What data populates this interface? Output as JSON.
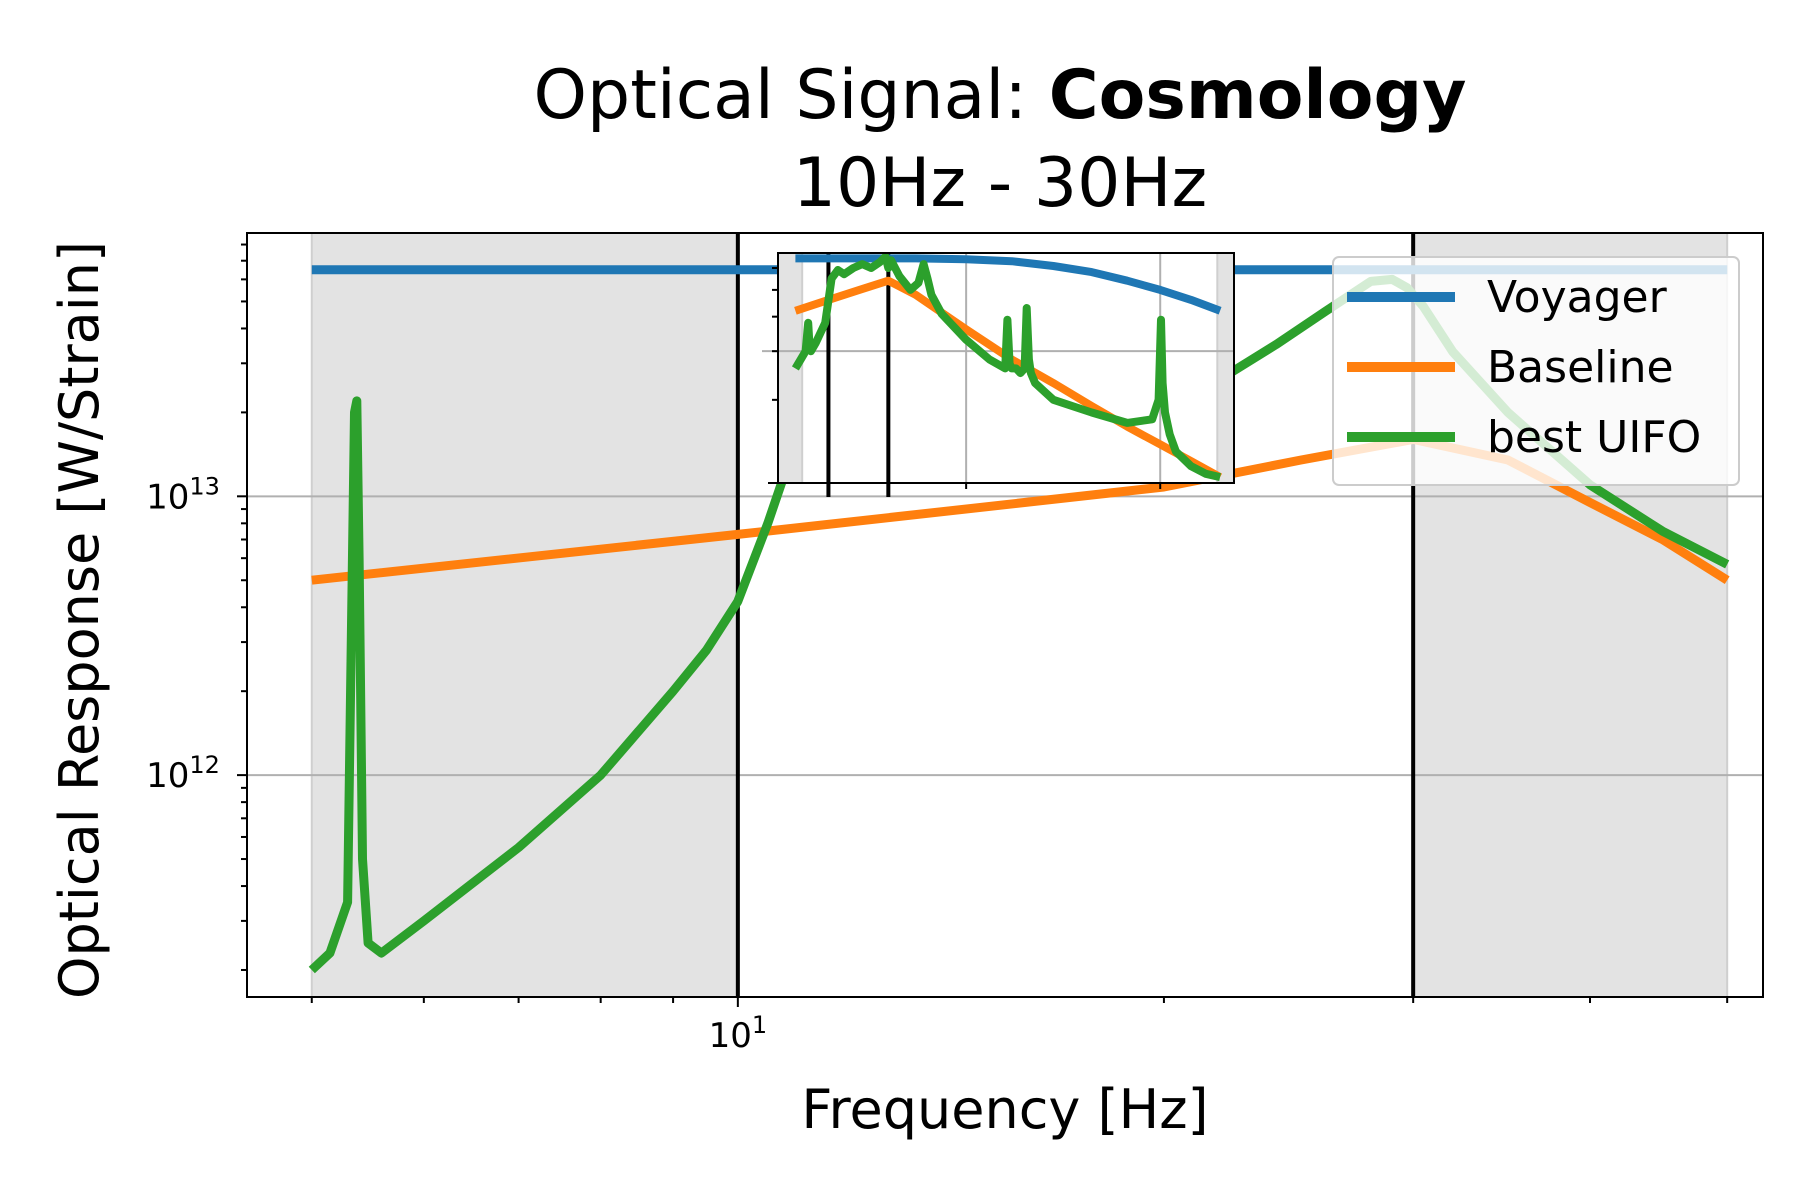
{
  "chart_data": {
    "type": "line",
    "title": {
      "prefix": "Optical Signal: ",
      "bold": "Cosmology"
    },
    "subtitle": "10Hz - 30Hz",
    "xlabel": "Frequency [Hz]",
    "ylabel": "Optical Response [W/Strain]",
    "x_scale": "log",
    "y_scale": "log",
    "xlim": [
      4.5,
      53
    ],
    "ylim": [
      160000000000.0,
      88000000000000.0
    ],
    "x_tick_labels": [
      {
        "value": 10,
        "base": "10",
        "exp": "1"
      }
    ],
    "y_tick_labels": [
      {
        "value": 1000000000000.0,
        "base": "10",
        "exp": "12"
      },
      {
        "value": 10000000000000.0,
        "base": "10",
        "exp": "13"
      }
    ],
    "grid": true,
    "legend_position": "top-right",
    "shaded_regions": [
      [
        5.0,
        10.0
      ],
      [
        30.0,
        50.0
      ]
    ],
    "band_edges": [
      10,
      30
    ],
    "colors": {
      "Voyager": "#1f77b4",
      "Baseline": "#ff7f0e",
      "best UIFO": "#2ca02c",
      "shade": "#e3e3e3"
    },
    "series": [
      {
        "name": "Voyager",
        "x": [
          5.0,
          50.0
        ],
        "y": [
          65000000000000.0,
          65000000000000.0
        ]
      },
      {
        "name": "Baseline",
        "x": [
          5.0,
          10.0,
          20.0,
          25.0,
          30.0,
          35.0,
          40.0,
          45.0,
          50.0
        ],
        "y": [
          5000000000000.0,
          7300000000000.0,
          10800000000000.0,
          13500000000000.0,
          16000000000000.0,
          13500000000000.0,
          9500000000000.0,
          7000000000000.0,
          5000000000000.0
        ]
      },
      {
        "name": "best UIFO",
        "x": [
          5.0,
          5.15,
          5.3,
          5.36,
          5.38,
          5.4,
          5.43,
          5.48,
          5.6,
          6.0,
          7.0,
          8.0,
          9.0,
          9.5,
          10.0,
          10.5,
          11.0,
          11.3,
          11.6,
          11.9,
          12.3,
          12.8,
          13.5,
          15.0,
          18.0,
          21.0,
          24.0,
          26.0,
          28.0,
          29.0,
          29.7,
          30.5,
          32.0,
          35.0,
          40.0,
          45.0,
          50.0
        ],
        "y": [
          200000000000.0,
          230000000000.0,
          350000000000.0,
          20000000000000.0,
          22000000000000.0,
          6000000000000.0,
          500000000000.0,
          250000000000.0,
          230000000000.0,
          300000000000.0,
          550000000000.0,
          1000000000000.0,
          2000000000000.0,
          2800000000000.0,
          4200000000000.0,
          8000000000000.0,
          16000000000000.0,
          24000000000000.0,
          29000000000000.0,
          26000000000000.0,
          20000000000000.0,
          17000000000000.0,
          14000000000000.0,
          13000000000000.0,
          16000000000000.0,
          23000000000000.0,
          35000000000000.0,
          46000000000000.0,
          59000000000000.0,
          60000000000000.0,
          56000000000000.0,
          48000000000000.0,
          33000000000000.0,
          20000000000000.0,
          11000000000000.0,
          7500000000000.0,
          5700000000000.0
        ]
      }
    ],
    "inset": {
      "xlim": [
        13.5,
        35
      ],
      "ylim": [
        10000000000000.0,
        68000000000000.0
      ],
      "grid": true,
      "shaded_regions": [
        [
          13.5,
          14.2
        ],
        [
          33.8,
          35
        ]
      ],
      "band_edges": [
        15,
        17
      ],
      "series": [
        {
          "name": "Voyager",
          "x": [
            14.0,
            18.0,
            20.0,
            22.0,
            24.0,
            26.0,
            28.0,
            30.0,
            32.0,
            34.0
          ],
          "y": [
            65000000000000.0,
            65000000000000.0,
            64500000000000.0,
            63500000000000.0,
            61000000000000.0,
            58000000000000.0,
            54000000000000.0,
            50000000000000.0,
            46000000000000.0,
            42000000000000.0
          ]
        },
        {
          "name": "Baseline",
          "x": [
            14.0,
            15.0,
            16.0,
            17.0,
            18.0,
            20.0,
            22.0,
            24.0,
            26.0,
            28.0,
            30.0,
            32.0,
            34.0
          ],
          "y": [
            42000000000000.0,
            46000000000000.0,
            50000000000000.0,
            54000000000000.0,
            48000000000000.0,
            36000000000000.0,
            28000000000000.0,
            23000000000000.0,
            19000000000000.0,
            16000000000000.0,
            13800000000000.0,
            12000000000000.0,
            10500000000000.0
          ]
        },
        {
          "name": "best UIFO",
          "x": [
            14.0,
            14.3,
            14.38,
            14.42,
            14.46,
            14.6,
            14.9,
            15.1,
            15.3,
            15.5,
            15.8,
            16.1,
            16.4,
            16.7,
            16.9,
            17.0,
            17.1,
            17.4,
            17.8,
            18.1,
            18.3,
            18.45,
            18.6,
            19.0,
            20.0,
            21.0,
            21.7,
            21.8,
            21.9,
            22.0,
            22.2,
            22.4,
            22.6,
            22.7,
            22.8,
            22.9,
            23.1,
            24.0,
            26.0,
            28.0,
            29.5,
            29.9,
            30.05,
            30.15,
            30.3,
            30.6,
            31.0,
            32.0,
            33.0,
            34.0
          ],
          "y": [
            26000000000000.0,
            30000000000000.0,
            38000000000000.0,
            31000000000000.0,
            30000000000000.0,
            32000000000000.0,
            38000000000000.0,
            55000000000000.0,
            59000000000000.0,
            57000000000000.0,
            60000000000000.0,
            62000000000000.0,
            60000000000000.0,
            63000000000000.0,
            66000000000000.0,
            60000000000000.0,
            64000000000000.0,
            56000000000000.0,
            50000000000000.0,
            53000000000000.0,
            62000000000000.0,
            55000000000000.0,
            48000000000000.0,
            41000000000000.0,
            33000000000000.0,
            28000000000000.0,
            26000000000000.0,
            39000000000000.0,
            27000000000000.0,
            26000000000000.0,
            26000000000000.0,
            25000000000000.0,
            26000000000000.0,
            43000000000000.0,
            28000000000000.0,
            25000000000000.0,
            23000000000000.0,
            20000000000000.0,
            18000000000000.0,
            16500000000000.0,
            17000000000000.0,
            20000000000000.0,
            39000000000000.0,
            23000000000000.0,
            18000000000000.0,
            15000000000000.0,
            13000000000000.0,
            11500000000000.0,
            10800000000000.0,
            10500000000000.0
          ]
        }
      ]
    },
    "legend": [
      "Voyager",
      "Baseline",
      "best UIFO"
    ]
  }
}
